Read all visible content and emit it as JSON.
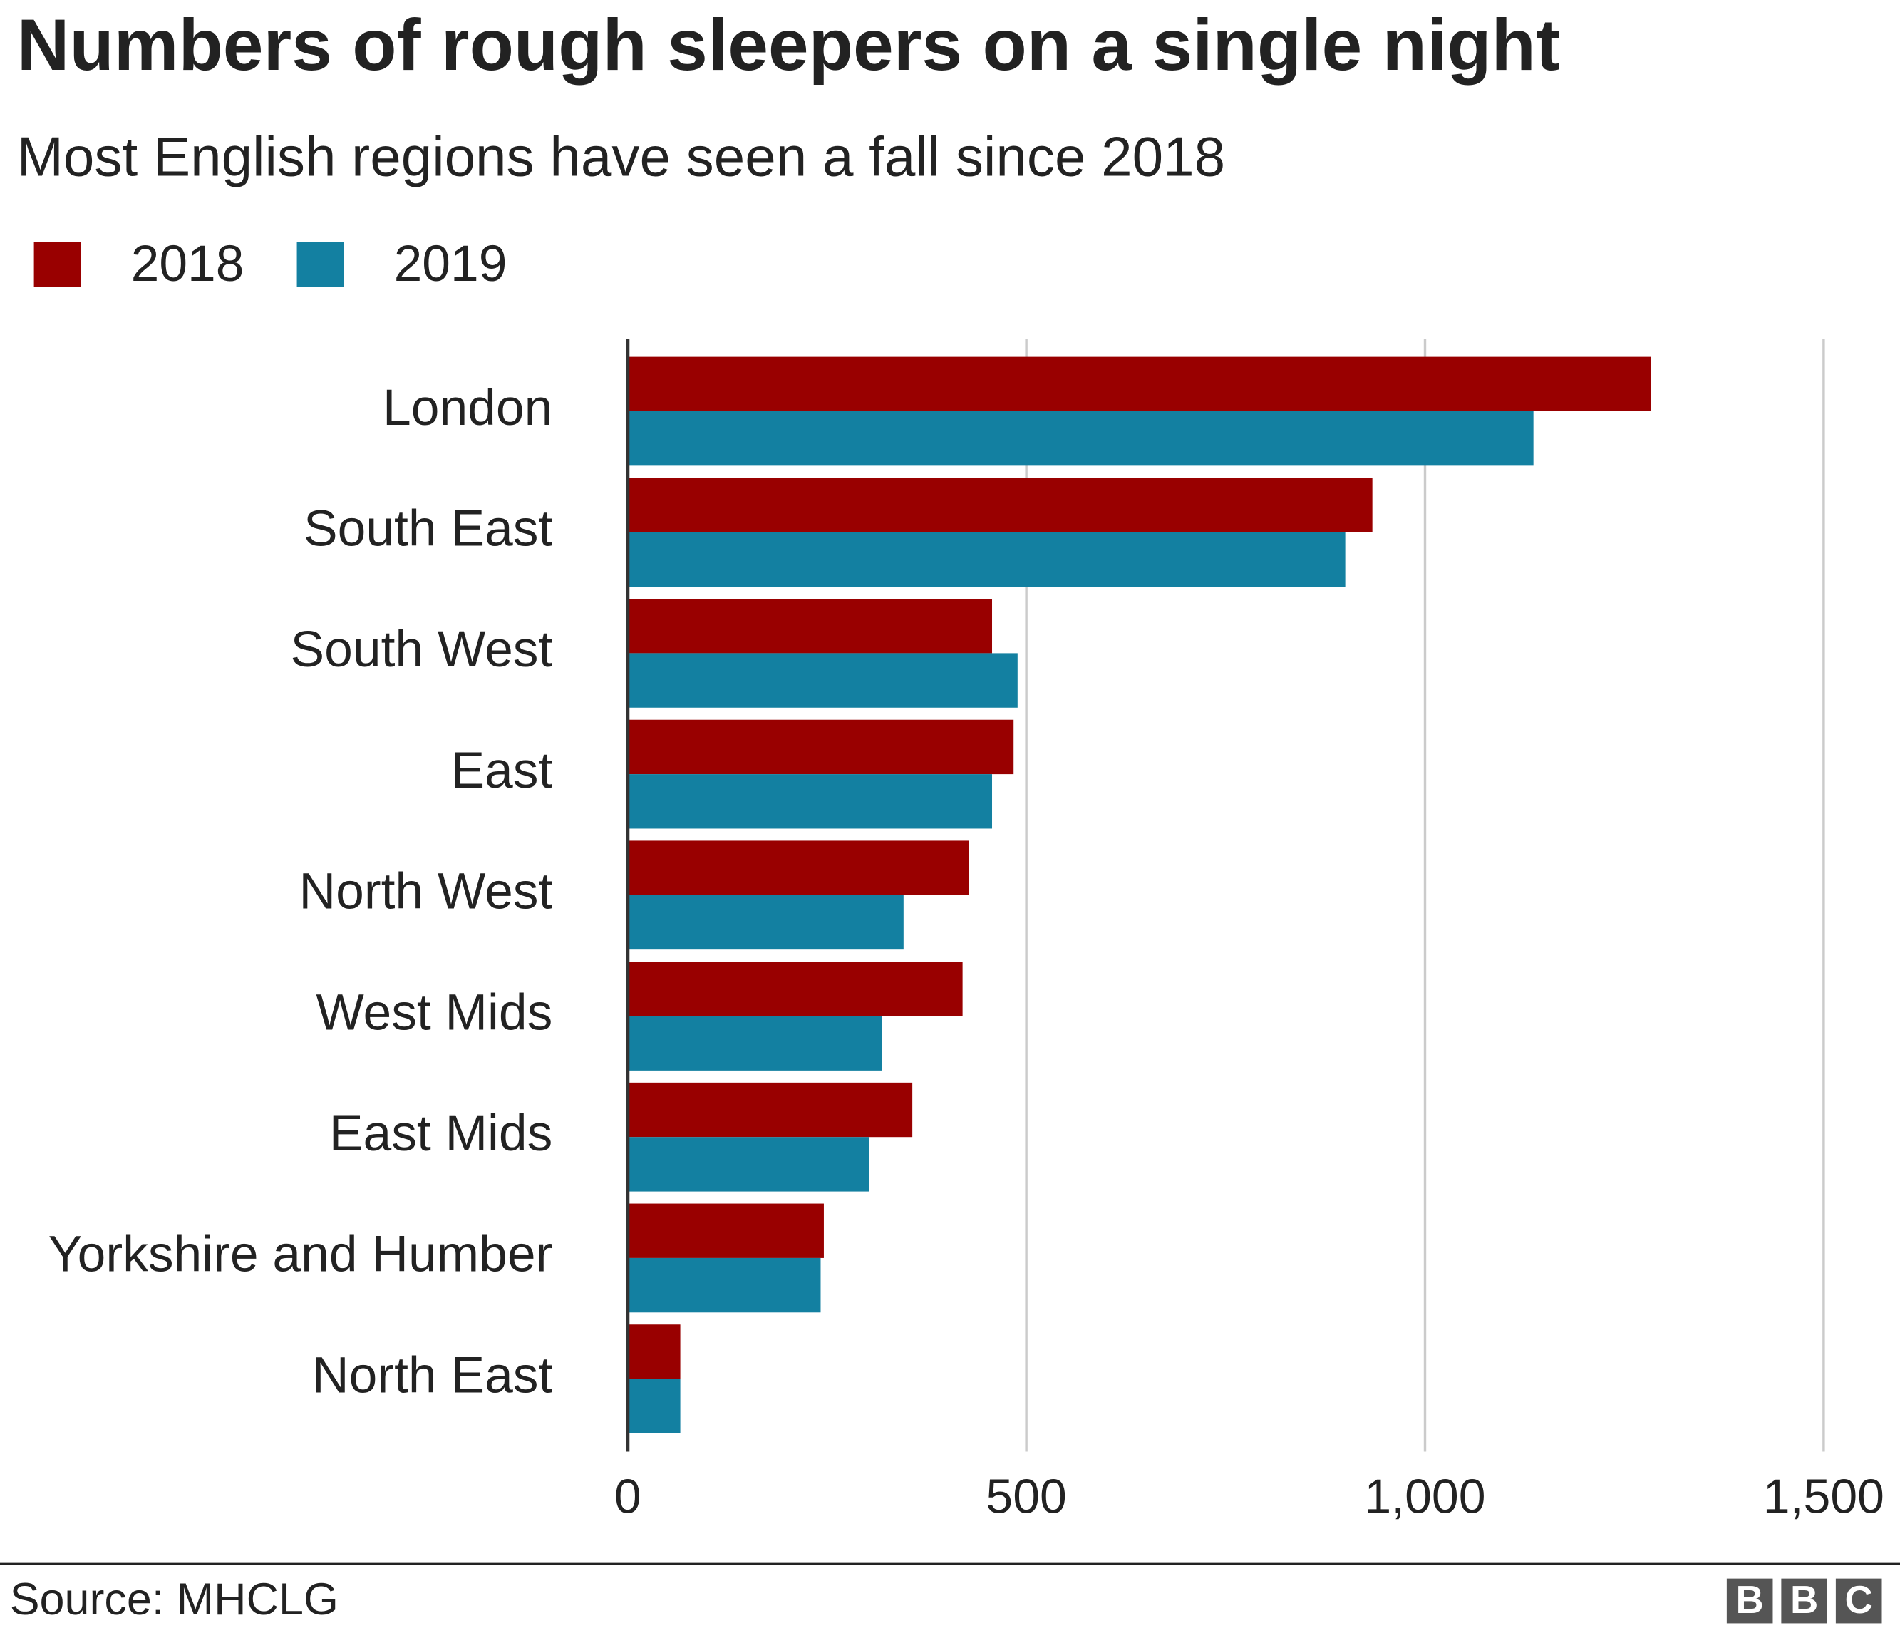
{
  "chart_data": {
    "type": "bar",
    "orientation": "horizontal",
    "title": "Numbers of rough sleepers on a single night",
    "subtitle": "Most English regions have seen a fall since 2018",
    "categories": [
      "London",
      "South East",
      "South West",
      "East",
      "North West",
      "West Mids",
      "East Mids",
      "Yorkshire and Humber",
      "North East"
    ],
    "series": [
      {
        "name": "2018",
        "color": "#990000",
        "values": [
          1283,
          934,
          457,
          484,
          428,
          420,
          357,
          246,
          66
        ]
      },
      {
        "name": "2019",
        "color": "#1380a1",
        "values": [
          1136,
          900,
          489,
          457,
          346,
          319,
          303,
          242,
          66
        ]
      }
    ],
    "xlim": [
      0,
      1500
    ],
    "xticks": [
      0,
      500,
      {
        "value": 1000,
        "label": "1,000"
      },
      {
        "value": 1500,
        "label": "1,500"
      }
    ],
    "grid": true,
    "legend": "top-left",
    "source": "Source: MHCLG",
    "logo": [
      "B",
      "B",
      "C"
    ]
  }
}
